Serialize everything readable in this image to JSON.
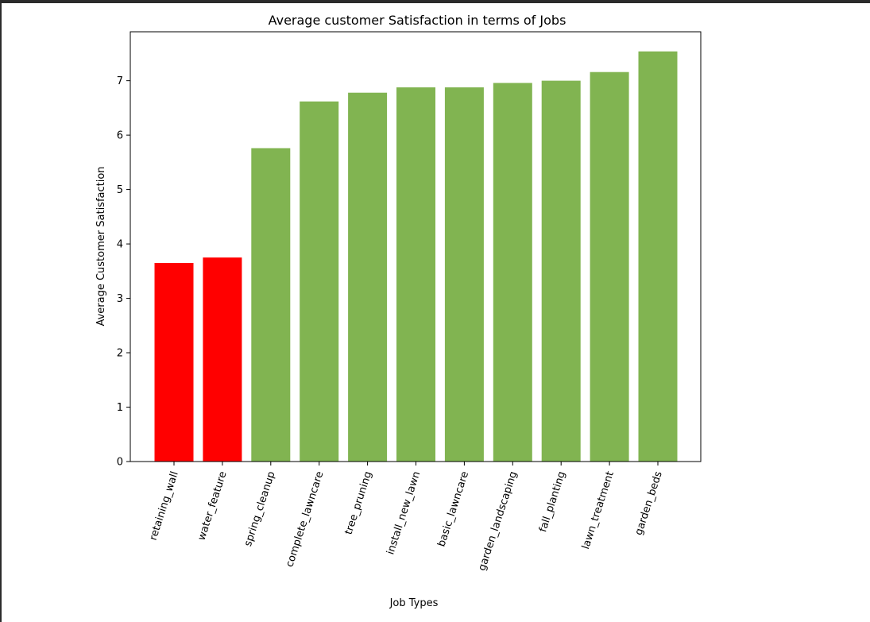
{
  "chart_data": {
    "type": "bar",
    "title": "Average customer Satisfaction in terms of Jobs",
    "xlabel": "Job Types",
    "ylabel": "Average Customer Satisfaction",
    "ylim": [
      0,
      7.9
    ],
    "yticks": [
      0,
      1,
      2,
      3,
      4,
      5,
      6,
      7
    ],
    "grid": false,
    "categories": [
      "retaining_wall",
      "water_feature",
      "spring_cleanup",
      "complete_lawncare",
      "tree_pruning",
      "install_new_lawn",
      "basic_lawncare",
      "garden_landscaping",
      "fall_planting",
      "lawn_treatment",
      "garden_beds"
    ],
    "values": [
      3.65,
      3.75,
      5.76,
      6.62,
      6.78,
      6.88,
      6.88,
      6.96,
      7.0,
      7.16,
      7.54
    ],
    "colors": [
      "#ff0000",
      "#ff0000",
      "#81b451",
      "#81b451",
      "#81b451",
      "#81b451",
      "#81b451",
      "#81b451",
      "#81b451",
      "#81b451",
      "#81b451"
    ]
  }
}
